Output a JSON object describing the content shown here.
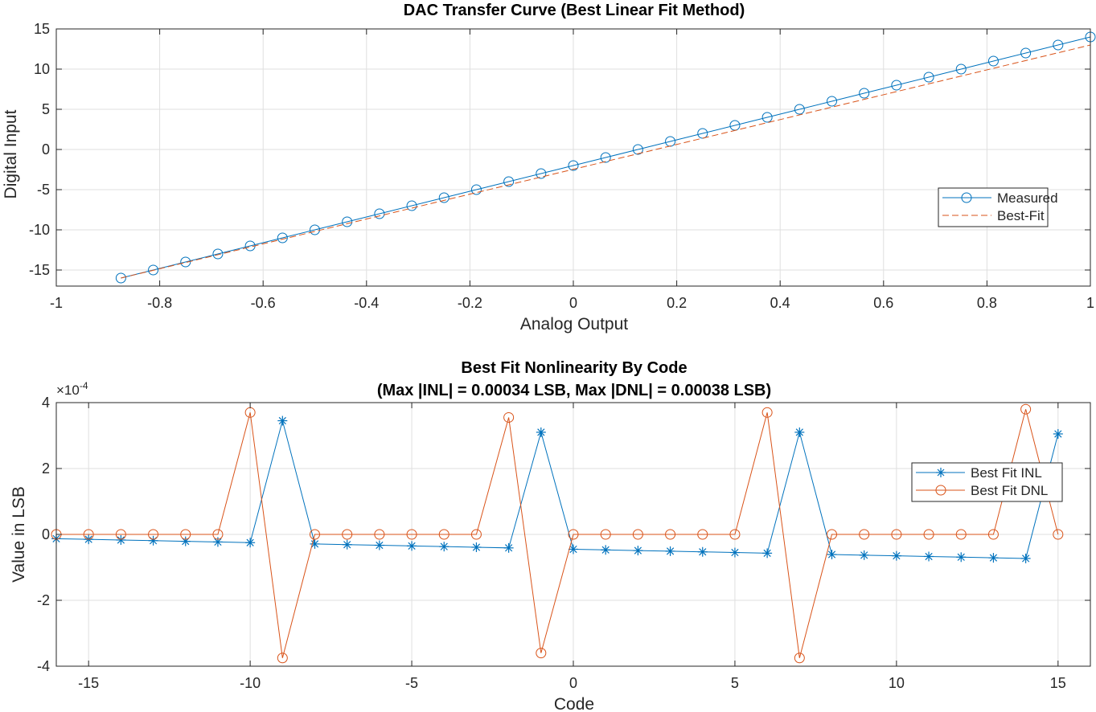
{
  "chart_data": [
    {
      "type": "line",
      "title": "DAC Transfer Curve (Best Linear Fit Method)",
      "xlabel": "Analog Output",
      "ylabel": "Digital Input",
      "xlim": [
        -1,
        1
      ],
      "ylim": [
        -17,
        15
      ],
      "xticks": [
        -1,
        -0.8,
        -0.6,
        -0.4,
        -0.2,
        0,
        0.2,
        0.4,
        0.6,
        0.8,
        1
      ],
      "xtick_labels": [
        "-1",
        "-0.8",
        "-0.6",
        "-0.4",
        "-0.2",
        "0",
        "0.2",
        "0.4",
        "0.6",
        "0.8",
        "1"
      ],
      "yticks": [
        -15,
        -10,
        -5,
        0,
        5,
        10,
        15
      ],
      "ytick_labels": [
        "-15",
        "-10",
        "-5",
        "0",
        "5",
        "10",
        "15"
      ],
      "grid": true,
      "legend_position": "right",
      "series": [
        {
          "name": "Measured",
          "color": "#0072BD",
          "marker": "circle",
          "line": "solid",
          "x": [
            -0.875,
            -0.8125,
            -0.75,
            -0.6875,
            -0.625,
            -0.5625,
            -0.5,
            -0.4375,
            -0.375,
            -0.3125,
            -0.25,
            -0.1875,
            -0.125,
            -0.0625,
            0,
            0.0625,
            0.125,
            0.1875,
            0.25,
            0.3125,
            0.375,
            0.4375,
            0.5,
            0.5625,
            0.625,
            0.6875,
            0.75,
            0.8125,
            0.875,
            0.9375,
            1
          ],
          "y": [
            -16,
            -15,
            -14,
            -13,
            -12,
            -11,
            -10,
            -9,
            -8,
            -7,
            -6,
            -5,
            -4,
            -3,
            -2,
            -1,
            0,
            1,
            2,
            3,
            4,
            5,
            6,
            7,
            8,
            9,
            10,
            11,
            12,
            13,
            14
          ]
        },
        {
          "name": "Best-Fit",
          "color": "#D95319",
          "marker": "none",
          "line": "dashed",
          "x": [
            -0.875,
            1
          ],
          "y": [
            -16,
            13
          ]
        }
      ]
    },
    {
      "type": "line",
      "title": "Best Fit Nonlinearity By Code",
      "subtitle": "(Max |INL| = 0.00034 LSB, Max |DNL| = 0.00038 LSB)",
      "xlabel": "Code",
      "ylabel": "Value in LSB",
      "exponent_label": "×10",
      "exponent_power": "-4",
      "xlim": [
        -16,
        16
      ],
      "ylim": [
        -4,
        4
      ],
      "xticks": [
        -15,
        -10,
        -5,
        0,
        5,
        10,
        15
      ],
      "xtick_labels": [
        "-15",
        "-10",
        "-5",
        "0",
        "5",
        "10",
        "15"
      ],
      "yticks": [
        -4,
        -2,
        0,
        2,
        4
      ],
      "ytick_labels": [
        "-4",
        "-2",
        "0",
        "2",
        "4"
      ],
      "grid": true,
      "legend_position": "right",
      "series": [
        {
          "name": "Best Fit INL",
          "color": "#0072BD",
          "marker": "asterisk",
          "line": "solid",
          "x": [
            -16,
            -15,
            -14,
            -13,
            -12,
            -11,
            -10,
            -9,
            -8,
            -7,
            -6,
            -5,
            -4,
            -3,
            -2,
            -1,
            0,
            1,
            2,
            3,
            4,
            5,
            6,
            7,
            8,
            9,
            10,
            11,
            12,
            13,
            14,
            15
          ],
          "y": [
            -0.13,
            -0.15,
            -0.17,
            -0.19,
            -0.21,
            -0.23,
            -0.25,
            3.45,
            -0.29,
            -0.31,
            -0.33,
            -0.35,
            -0.37,
            -0.39,
            -0.41,
            3.1,
            -0.45,
            -0.47,
            -0.49,
            -0.51,
            -0.53,
            -0.55,
            -0.57,
            3.1,
            -0.61,
            -0.63,
            -0.65,
            -0.67,
            -0.69,
            -0.71,
            -0.73,
            3.05
          ]
        },
        {
          "name": "Best Fit DNL",
          "color": "#D95319",
          "marker": "circle",
          "line": "solid",
          "x": [
            -16,
            -15,
            -14,
            -13,
            -12,
            -11,
            -10,
            -9,
            -8,
            -7,
            -6,
            -5,
            -4,
            -3,
            -2,
            -1,
            0,
            1,
            2,
            3,
            4,
            5,
            6,
            7,
            8,
            9,
            10,
            11,
            12,
            13,
            14,
            15
          ],
          "y": [
            0,
            0,
            0,
            0,
            0,
            0,
            3.7,
            -3.75,
            0,
            0,
            0,
            0,
            0,
            0,
            3.55,
            -3.6,
            0,
            0,
            0,
            0,
            0,
            0,
            3.7,
            -3.75,
            0,
            0,
            0,
            0,
            0,
            0,
            3.8,
            0
          ]
        }
      ]
    }
  ]
}
